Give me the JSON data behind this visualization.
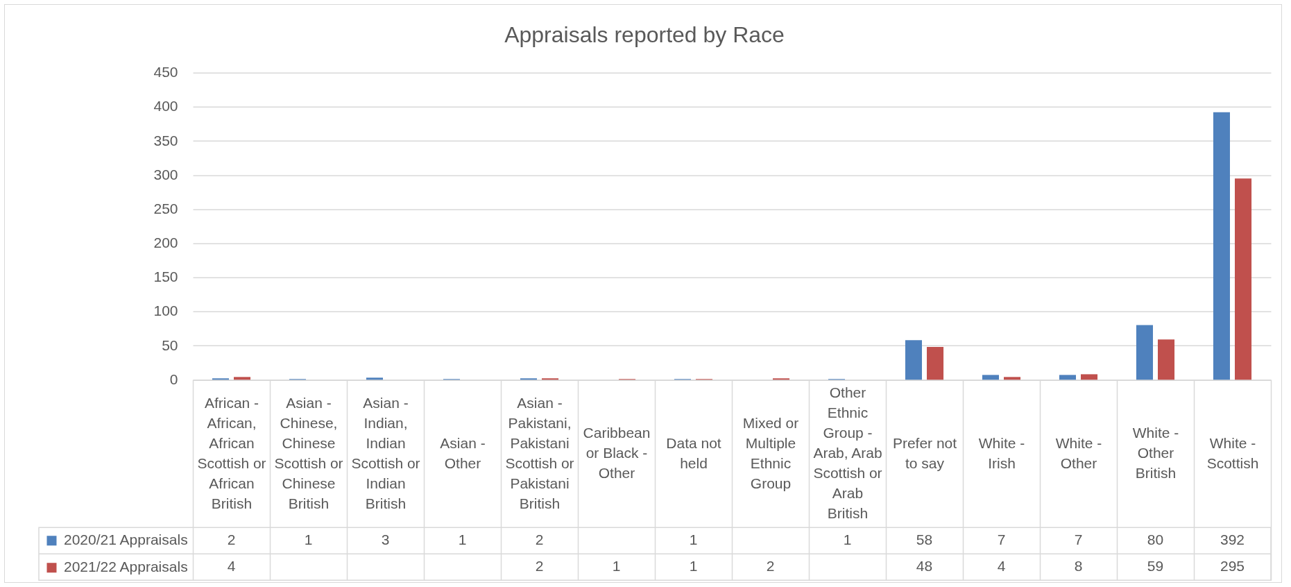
{
  "chart_data": {
    "type": "bar",
    "title": "Appraisals reported by Race",
    "categories": [
      "African - African, African Scottish or African British",
      "Asian - Chinese, Chinese Scottish or Chinese British",
      "Asian - Indian, Indian Scottish or Indian British",
      "Asian - Other",
      "Asian - Pakistani, Pakistani Scottish or Pakistani British",
      "Caribbean or Black - Other",
      "Data not held",
      "Mixed or Multiple Ethnic Group",
      "Other Ethnic Group - Arab, Arab Scottish or Arab British",
      "Prefer not to say",
      "White - Irish",
      "White - Other",
      "White - Other British",
      "White - Scottish"
    ],
    "series": [
      {
        "name": "2020/21 Appraisals",
        "color": "#4f81bd",
        "values": [
          2,
          1,
          3,
          1,
          2,
          null,
          1,
          null,
          1,
          58,
          7,
          7,
          80,
          392
        ]
      },
      {
        "name": "2021/22 Appraisals",
        "color": "#c0504d",
        "values": [
          4,
          null,
          null,
          null,
          2,
          1,
          1,
          2,
          null,
          48,
          4,
          8,
          59,
          295
        ]
      }
    ],
    "ylim": [
      0,
      450
    ],
    "yticks": [
      0,
      50,
      100,
      150,
      200,
      250,
      300,
      350,
      400,
      450
    ],
    "grid": "y",
    "legend": "bottom left",
    "data_labels": true
  }
}
